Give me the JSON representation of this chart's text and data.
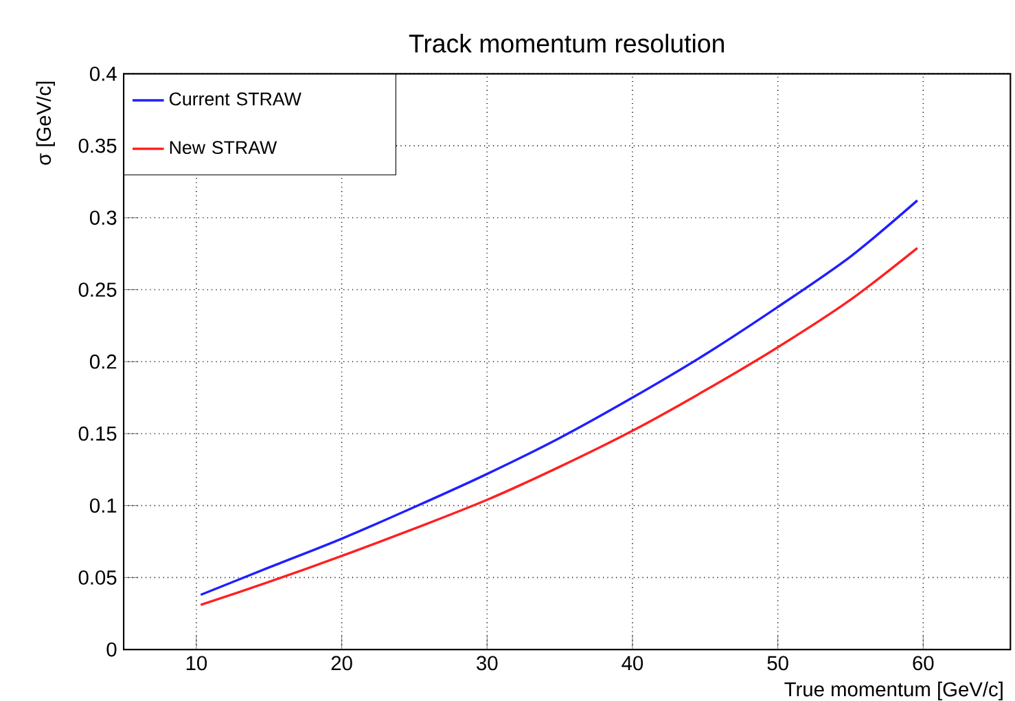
{
  "chart_data": {
    "type": "line",
    "title": "Track momentum resolution",
    "xlabel": "True momentum [GeV/c]",
    "ylabel": "σ [GeV/c]",
    "xlim": [
      5,
      66
    ],
    "ylim": [
      0,
      0.4
    ],
    "xticks": [
      10,
      20,
      30,
      40,
      50,
      60
    ],
    "yticks": [
      0,
      0.05,
      0.1,
      0.15,
      0.2,
      0.25,
      0.3,
      0.35,
      0.4
    ],
    "grid": true,
    "legend": "top left",
    "marker": "none",
    "line_style": "solid",
    "series": [
      {
        "name": "Current STRAW",
        "color": "#1f1fff",
        "x": [
          10.3,
          15,
          20,
          25,
          30,
          35,
          40,
          45,
          50,
          55,
          59.6
        ],
        "values": [
          0.038,
          0.057,
          0.077,
          0.099,
          0.122,
          0.147,
          0.175,
          0.205,
          0.238,
          0.273,
          0.312
        ]
      },
      {
        "name": "New STRAW",
        "color": "#ff2020",
        "x": [
          10.3,
          15,
          20,
          25,
          30,
          35,
          40,
          45,
          50,
          55,
          59.6
        ],
        "values": [
          0.031,
          0.047,
          0.065,
          0.084,
          0.104,
          0.127,
          0.152,
          0.18,
          0.21,
          0.243,
          0.279
        ]
      }
    ]
  }
}
